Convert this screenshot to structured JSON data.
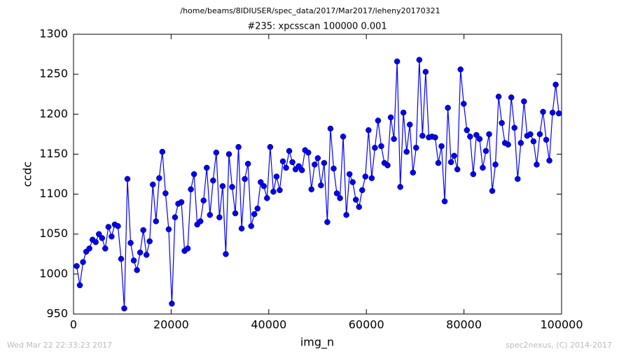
{
  "chart_data": {
    "type": "line",
    "suptitle": "/home/beams/8IDIUSER/spec_data/2017/Mar2017/leheny20170321",
    "title": "#235: xpcsscan 100000 0.001",
    "xlabel": "img_n",
    "ylabel": "ccdc",
    "footer_left": "Wed Mar 22 22:33:23 2017",
    "footer_right": "spec2nexus, (C) 2014-2017",
    "xlim": [
      0,
      100000
    ],
    "xticks": [
      0,
      20000,
      40000,
      60000,
      80000,
      100000
    ],
    "ylim": [
      950,
      1300
    ],
    "yticks": [
      950,
      1000,
      1050,
      1100,
      1150,
      1200,
      1250,
      1300
    ],
    "x": [
      650,
      1300,
      1950,
      2600,
      3250,
      3900,
      4550,
      5200,
      5850,
      6500,
      7150,
      7800,
      8450,
      9100,
      9750,
      10400,
      11050,
      11700,
      12350,
      13000,
      13650,
      14300,
      14950,
      15600,
      16250,
      16900,
      17550,
      18200,
      18850,
      19500,
      20150,
      20800,
      21450,
      22100,
      22750,
      23400,
      24050,
      24700,
      25350,
      26000,
      26650,
      27300,
      27950,
      28600,
      29250,
      29900,
      30550,
      31200,
      31850,
      32500,
      33150,
      33800,
      34450,
      35100,
      35750,
      36400,
      37050,
      37700,
      38350,
      39000,
      39650,
      40300,
      40950,
      41600,
      42250,
      42900,
      43550,
      44200,
      44850,
      45500,
      46150,
      46800,
      47450,
      48100,
      48750,
      49400,
      50050,
      50700,
      51350,
      52000,
      52650,
      53300,
      53950,
      54600,
      55250,
      55900,
      56550,
      57200,
      57850,
      58500,
      59150,
      59800,
      60450,
      61100,
      61750,
      62400,
      63050,
      63700,
      64350,
      65000,
      65650,
      66300,
      66950,
      67600,
      68250,
      68900,
      69550,
      70200,
      70850,
      71500,
      72150,
      72800,
      73450,
      74100,
      74750,
      75400,
      76050,
      76700,
      77350,
      78000,
      78650,
      79300,
      79950,
      80600,
      81250,
      81900,
      82550,
      83200,
      83850,
      84500,
      85150,
      85800,
      86450,
      87100,
      87750,
      88400,
      89050,
      89700,
      90350,
      91000,
      91650,
      92300,
      92950,
      93600,
      94250,
      94900,
      95550,
      96200,
      96850,
      97500,
      98150,
      98800,
      99450
    ],
    "series": [
      {
        "name": "ccdc",
        "color": "#0000ff",
        "values": [
          1010,
          986,
          1015,
          1028,
          1032,
          1043,
          1040,
          1050,
          1045,
          1032,
          1059,
          1047,
          1062,
          1060,
          1019,
          957,
          1119,
          1039,
          1017,
          1005,
          1027,
          1055,
          1024,
          1041,
          1112,
          1066,
          1120,
          1153,
          1101,
          1056,
          963,
          1071,
          1088,
          1090,
          1029,
          1032,
          1106,
          1125,
          1062,
          1066,
          1092,
          1133,
          1074,
          1117,
          1152,
          1071,
          1110,
          1025,
          1150,
          1109,
          1076,
          1159,
          1057,
          1119,
          1138,
          1060,
          1075,
          1082,
          1115,
          1110,
          1095,
          1159,
          1103,
          1122,
          1105,
          1141,
          1133,
          1154,
          1140,
          1131,
          1135,
          1130,
          1155,
          1152,
          1106,
          1137,
          1145,
          1111,
          1139,
          1065,
          1182,
          1132,
          1101,
          1095,
          1172,
          1074,
          1125,
          1115,
          1093,
          1084,
          1105,
          1122,
          1180,
          1120,
          1158,
          1192,
          1160,
          1139,
          1136,
          1196,
          1169,
          1266,
          1109,
          1202,
          1153,
          1187,
          1127,
          1158,
          1268,
          1173,
          1253,
          1171,
          1172,
          1171,
          1139,
          1160,
          1091,
          1208,
          1140,
          1148,
          1131,
          1256,
          1213,
          1180,
          1172,
          1125,
          1174,
          1169,
          1133,
          1154,
          1175,
          1104,
          1137,
          1222,
          1189,
          1164,
          1162,
          1221,
          1183,
          1119,
          1164,
          1216,
          1173,
          1175,
          1166,
          1137,
          1175,
          1203,
          1168,
          1142,
          1202,
          1237,
          1201
        ]
      }
    ]
  }
}
